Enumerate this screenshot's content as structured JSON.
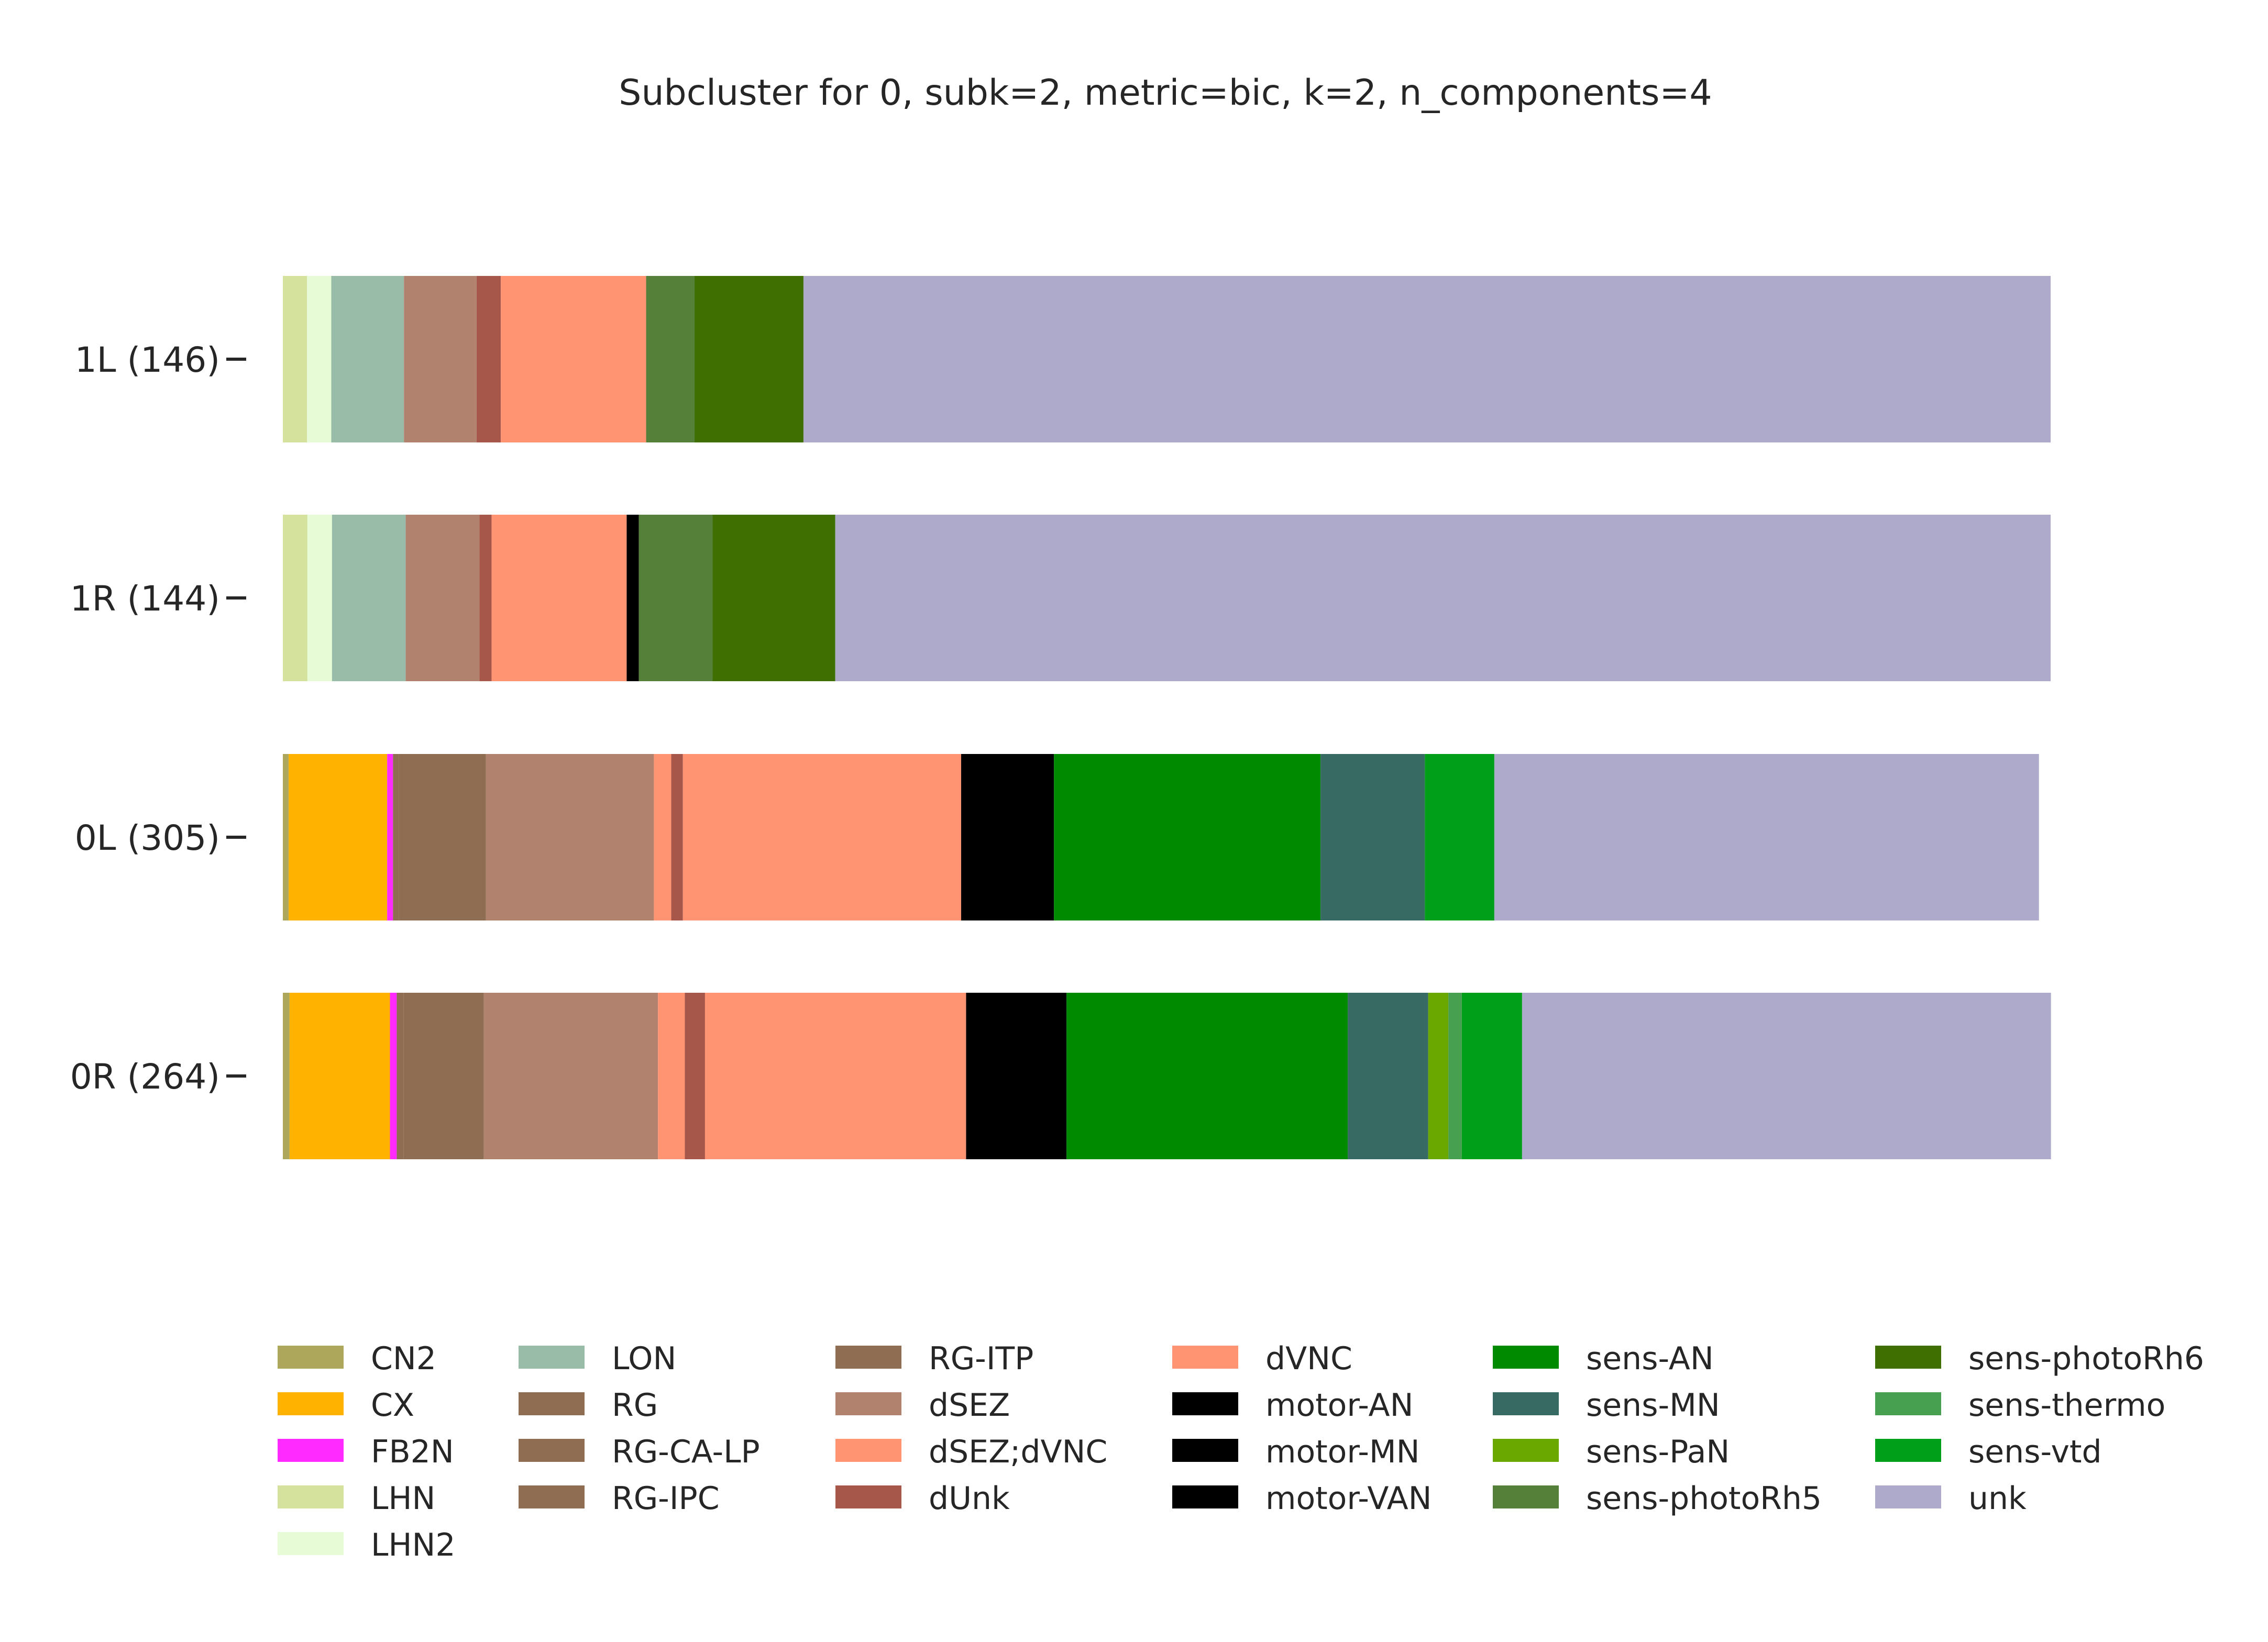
{
  "chart_data": {
    "type": "bar",
    "orientation": "horizontal",
    "stacked": true,
    "normalized": true,
    "title": "Subcluster for 0, subk=2, metric=bic, k=2, n_components=4",
    "xlabel": "",
    "ylabel": "",
    "xlim": [
      0,
      1
    ],
    "grid": false,
    "legend_position": "bottom",
    "legend_columns": 6,
    "categories": [
      "1L (146)",
      "1R (144)",
      "0L (305)",
      "0R (264)"
    ],
    "series": [
      {
        "name": "CN2",
        "color": "#ada75b",
        "values": [
          0.0,
          0.0,
          0.0033,
          0.0038
        ]
      },
      {
        "name": "CX",
        "color": "#ffb200",
        "values": [
          0.0,
          0.0,
          0.0557,
          0.0568
        ]
      },
      {
        "name": "FB2N",
        "color": "#ff2aff",
        "values": [
          0.0,
          0.0,
          0.0033,
          0.0038
        ]
      },
      {
        "name": "LHN",
        "color": "#d4e29e",
        "values": [
          0.0137,
          0.0139,
          0.0,
          0.0
        ]
      },
      {
        "name": "LHN2",
        "color": "#e7fcd6",
        "values": [
          0.0137,
          0.0139,
          0.0,
          0.0
        ]
      },
      {
        "name": "LON",
        "color": "#98bca8",
        "values": [
          0.0411,
          0.0417,
          0.0,
          0.0
        ]
      },
      {
        "name": "RG",
        "color": "#8f6d53",
        "values": [
          0.0,
          0.0,
          0.0033,
          0.0
        ]
      },
      {
        "name": "RG-CA-LP",
        "color": "#8f6d53",
        "values": [
          0.0,
          0.0,
          0.0,
          0.0038
        ]
      },
      {
        "name": "RG-IPC",
        "color": "#8f6d53",
        "values": [
          0.0,
          0.0,
          0.0492,
          0.0455
        ]
      },
      {
        "name": "RG-ITP",
        "color": "#8f6d53",
        "values": [
          0.0,
          0.0,
          0.0,
          0.0
        ]
      },
      {
        "name": "dSEZ",
        "color": "#b1836f",
        "values": [
          0.0411,
          0.0417,
          0.0951,
          0.0985
        ]
      },
      {
        "name": "dSEZ;dVNC",
        "color": "#ff9473",
        "values": [
          0.0,
          0.0,
          0.0098,
          0.0152
        ]
      },
      {
        "name": "dUnk",
        "color": "#a6574a",
        "values": [
          0.0137,
          0.0069,
          0.0066,
          0.0114
        ]
      },
      {
        "name": "dVNC",
        "color": "#ff9473",
        "values": [
          0.0822,
          0.0764,
          0.1574,
          0.1477
        ]
      },
      {
        "name": "motor-AN",
        "color": "#000000",
        "values": [
          0.0,
          0.0069,
          0.0,
          0.0
        ]
      },
      {
        "name": "motor-MN",
        "color": "#000000",
        "values": [
          0.0,
          0.0,
          0.0525,
          0.0568
        ]
      },
      {
        "name": "motor-VAN",
        "color": "#000000",
        "values": [
          0.0,
          0.0,
          0.0,
          0.0
        ]
      },
      {
        "name": "sens-AN",
        "color": "#008a00",
        "values": [
          0.0,
          0.0,
          0.1508,
          0.1591
        ]
      },
      {
        "name": "sens-MN",
        "color": "#366a63",
        "values": [
          0.0,
          0.0,
          0.059,
          0.0455
        ]
      },
      {
        "name": "sens-PaN",
        "color": "#6aa800",
        "values": [
          0.0,
          0.0,
          0.0,
          0.0114
        ]
      },
      {
        "name": "sens-photoRh5",
        "color": "#54803a",
        "values": [
          0.0274,
          0.0417,
          0.0,
          0.0
        ]
      },
      {
        "name": "sens-photoRh6",
        "color": "#3e6f00",
        "values": [
          0.0616,
          0.0694,
          0.0,
          0.0
        ]
      },
      {
        "name": "sens-thermo",
        "color": "#479f50",
        "values": [
          0.0,
          0.0,
          0.0,
          0.0076
        ]
      },
      {
        "name": "sens-vtd",
        "color": "#009f19",
        "values": [
          0.0,
          0.0,
          0.0393,
          0.0341
        ]
      },
      {
        "name": "unk",
        "color": "#adaacb",
        "values": [
          0.7055,
          0.6875,
          0.3081,
          0.2992
        ]
      }
    ]
  }
}
